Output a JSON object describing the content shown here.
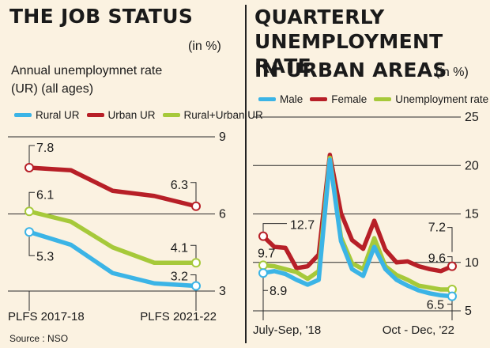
{
  "colors": {
    "rural": "#3bb4e6",
    "urban": "#b71f27",
    "total": "#a6c93a"
  },
  "left": {
    "title": "THE JOB STATUS",
    "unit": "(in %)",
    "subtitle_line1": "Annual unemploymnet rate",
    "subtitle_line2": "(UR) (all ages)",
    "legend": [
      "Rural UR",
      "Urban UR",
      "Rural+Urban UR"
    ],
    "source": "Source : NSO"
  },
  "right": {
    "title_line1": "QUARTERLY",
    "title_line2": "UNEMPLOYMENT RATE",
    "title_line3": "IN URBAN AREAS",
    "unit": "(in %)",
    "legend": [
      "Male",
      "Female",
      "Unemployment rate"
    ]
  },
  "chart_data": [
    {
      "type": "line",
      "x": [
        "PLFS 2017-18",
        "",
        "",
        "",
        "PLFS 2021-22"
      ],
      "ylim": [
        3,
        9
      ],
      "yticks": [
        3,
        6,
        9
      ],
      "series": [
        {
          "name": "Urban UR",
          "values": [
            7.8,
            7.7,
            6.9,
            6.7,
            6.3
          ],
          "color": "#b71f27"
        },
        {
          "name": "Rural+Urban UR",
          "values": [
            6.1,
            5.7,
            4.7,
            4.1,
            4.1
          ],
          "color": "#a6c93a"
        },
        {
          "name": "Rural UR",
          "values": [
            5.3,
            4.8,
            3.7,
            3.3,
            3.2
          ],
          "color": "#3bb4e6"
        }
      ],
      "labels": {
        "Urban UR": [
          "7.8",
          "6.3"
        ],
        "Rural+Urban UR": [
          "6.1",
          "4.1"
        ],
        "Rural UR": [
          "5.3",
          "3.2"
        ]
      },
      "x_tick_labels": [
        "PLFS 2017-18",
        "PLFS 2021-22"
      ]
    },
    {
      "type": "line",
      "x": [
        "July-Sep, '18",
        "",
        "",
        "",
        "",
        "",
        "",
        "",
        "",
        "",
        "",
        "",
        "",
        "",
        "",
        "",
        "",
        "Oct - Dec, '22"
      ],
      "ylim": [
        5,
        25
      ],
      "yticks": [
        5,
        10,
        15,
        20,
        25
      ],
      "series": [
        {
          "name": "Female",
          "values": [
            12.7,
            11.6,
            11.5,
            9.4,
            9.6,
            10.8,
            21.1,
            15.1,
            12.3,
            11.4,
            14.3,
            11.3,
            10.0,
            10.1,
            9.6,
            9.3,
            9.1,
            9.6
          ],
          "color": "#b71f27"
        },
        {
          "name": "Unemployment rate",
          "values": [
            9.7,
            9.6,
            9.3,
            9.0,
            8.3,
            9.1,
            20.8,
            12.6,
            9.9,
            9.3,
            12.5,
            9.6,
            8.7,
            8.2,
            7.6,
            7.4,
            7.2,
            7.2
          ],
          "color": "#a6c93a"
        },
        {
          "name": "Male",
          "values": [
            8.9,
            9.1,
            8.8,
            8.2,
            7.7,
            8.2,
            20.6,
            12.2,
            9.3,
            8.6,
            11.6,
            9.3,
            8.2,
            7.6,
            7.1,
            6.8,
            6.6,
            6.5
          ],
          "color": "#3bb4e6"
        }
      ],
      "labels": {
        "Female": [
          "12.7",
          "9.6"
        ],
        "Unemployment rate": [
          "9.7",
          "7.2"
        ],
        "Male": [
          "8.9",
          "6.5"
        ]
      },
      "x_tick_labels": [
        "July-Sep, '18",
        "Oct - Dec, '22"
      ]
    }
  ]
}
